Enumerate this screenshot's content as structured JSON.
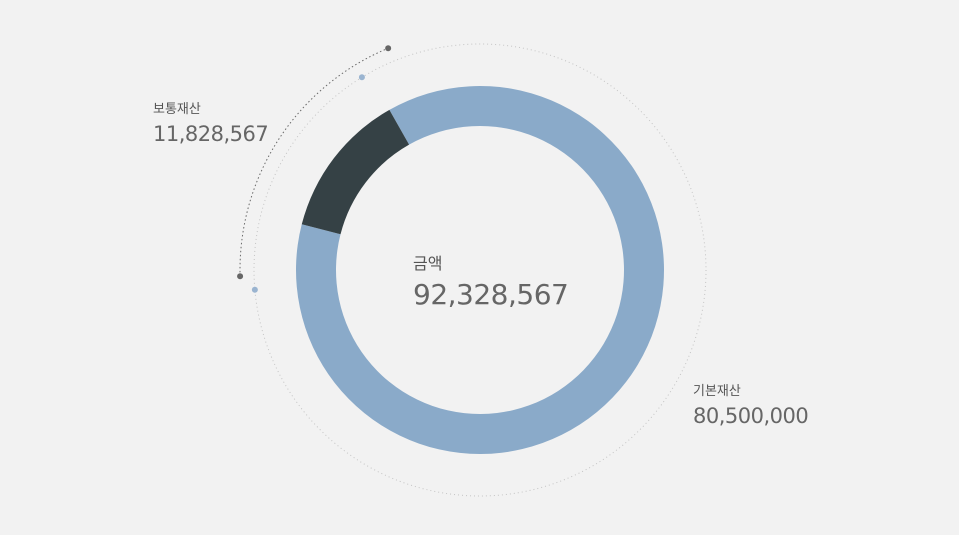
{
  "chart_data": {
    "type": "pie",
    "donut": true,
    "total_label": "금액",
    "total_value": "92,328,567",
    "slices": [
      {
        "name": "기본재산",
        "value": 80500000,
        "value_label": "80,500,000",
        "color": "#8aaac9"
      },
      {
        "name": "보통재산",
        "value": 11828567,
        "value_label": "11,828,567",
        "color": "#354145"
      }
    ]
  }
}
